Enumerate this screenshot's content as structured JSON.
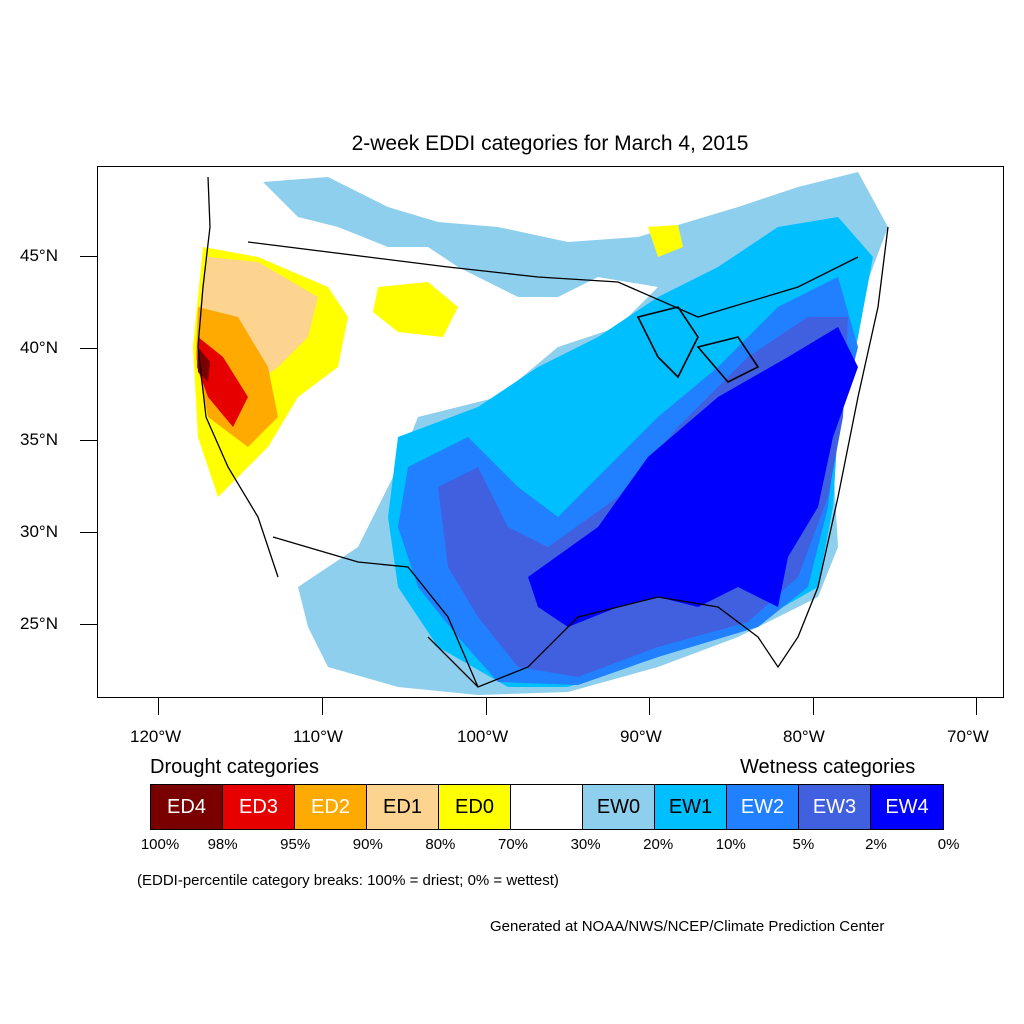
{
  "title": "2-week EDDI categories for March 4, 2015",
  "axes": {
    "y_ticks": [
      "45°N",
      "40°N",
      "35°N",
      "30°N",
      "25°N"
    ],
    "x_ticks": [
      "120°W",
      "110°W",
      "100°W",
      "90°W",
      "80°W",
      "70°W"
    ]
  },
  "legend": {
    "drought_heading": "Drought categories",
    "wetness_heading": "Wetness categories",
    "categories": [
      {
        "label": "ED4",
        "color": "#7a0000",
        "text_color": "#ffffff"
      },
      {
        "label": "ED3",
        "color": "#e60000",
        "text_color": "#ffffff"
      },
      {
        "label": "ED2",
        "color": "#ffaa00",
        "text_color": "#ffffff"
      },
      {
        "label": "ED1",
        "color": "#fcd38f",
        "text_color": "#000000"
      },
      {
        "label": "ED0",
        "color": "#ffff00",
        "text_color": "#000000"
      },
      {
        "label": "",
        "color": "#ffffff",
        "text_color": "#000000"
      },
      {
        "label": "EW0",
        "color": "#8fcfee",
        "text_color": "#000000"
      },
      {
        "label": "EW1",
        "color": "#00bfff",
        "text_color": "#000000"
      },
      {
        "label": "EW2",
        "color": "#2080ff",
        "text_color": "#ffffff"
      },
      {
        "label": "EW3",
        "color": "#4060e0",
        "text_color": "#ffffff"
      },
      {
        "label": "EW4",
        "color": "#0000ff",
        "text_color": "#ffffff"
      }
    ],
    "breaks": [
      "100%",
      "98%",
      "95%",
      "90%",
      "80%",
      "70%",
      "30%",
      "20%",
      "10%",
      "5%",
      "2%",
      "0%"
    ]
  },
  "note": "(EDDI-percentile category breaks: 100% = driest; 0% = wettest)",
  "credit": "Generated at NOAA/NWS/NCEP/Climate Prediction Center"
}
